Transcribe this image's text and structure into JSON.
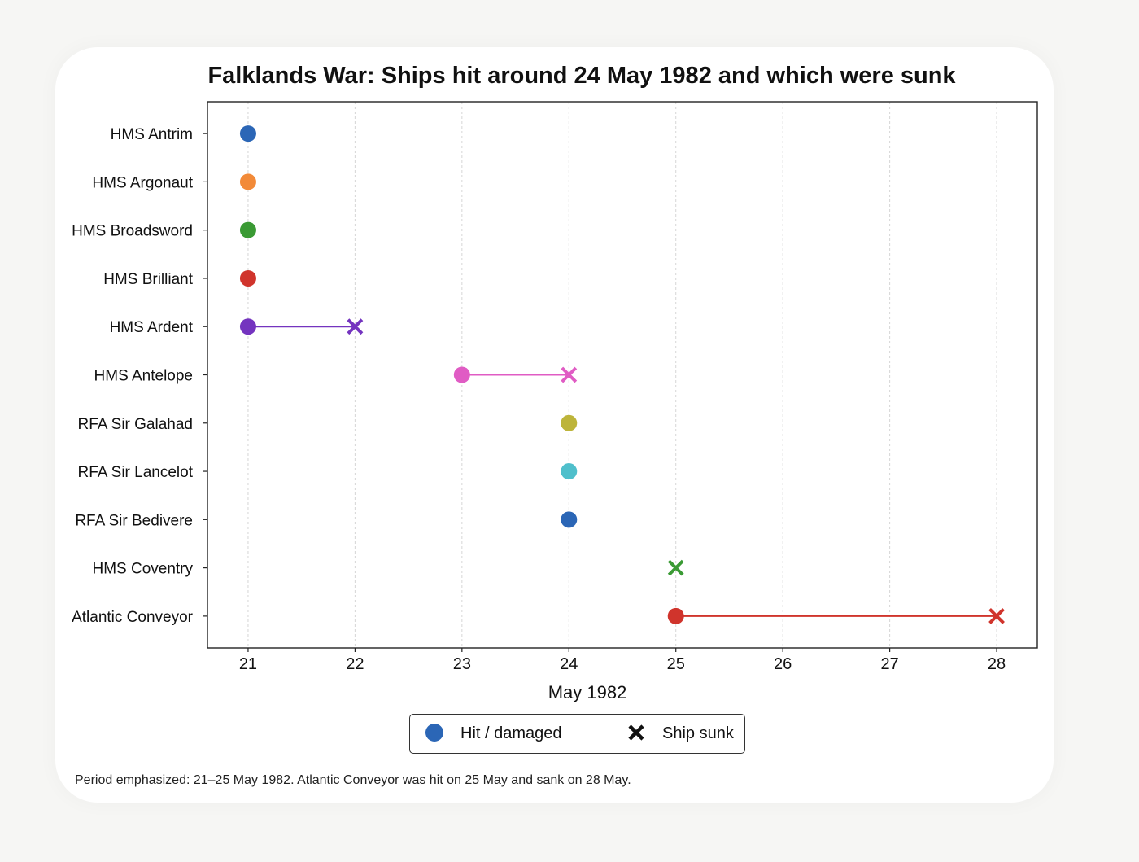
{
  "chart_data": {
    "type": "scatter",
    "title": "Falklands War: Ships hit around 24 May 1982 and which were sunk",
    "xlabel": "May 1982",
    "ylabel": "",
    "x_ticks": [
      21,
      22,
      23,
      24,
      25,
      26,
      27,
      28
    ],
    "xlim": [
      20.62,
      28.38
    ],
    "grid": {
      "x": true,
      "y": false
    },
    "rows": [
      {
        "label": "HMS Antrim",
        "hit": 21,
        "sunk": null,
        "color": "#2b66b6"
      },
      {
        "label": "HMS Argonaut",
        "hit": 21,
        "sunk": null,
        "color": "#f28a38"
      },
      {
        "label": "HMS Broadsword",
        "hit": 21,
        "sunk": null,
        "color": "#3a9a34"
      },
      {
        "label": "HMS Brilliant",
        "hit": 21,
        "sunk": null,
        "color": "#d0342c"
      },
      {
        "label": "HMS Ardent",
        "hit": 21,
        "sunk": 22,
        "color": "#7434bf"
      },
      {
        "label": "HMS Antelope",
        "hit": 23,
        "sunk": 24,
        "color": "#e05cc4"
      },
      {
        "label": "RFA Sir Galahad",
        "hit": 24,
        "sunk": null,
        "color": "#bdb43a"
      },
      {
        "label": "RFA Sir Lancelot",
        "hit": 24,
        "sunk": null,
        "color": "#4fbfcb"
      },
      {
        "label": "RFA Sir Bedivere",
        "hit": 24,
        "sunk": null,
        "color": "#2b66b6"
      },
      {
        "label": "HMS Coventry",
        "hit": null,
        "sunk": 25,
        "color": "#3a9a34"
      },
      {
        "label": "Atlantic Conveyor",
        "hit": 25,
        "sunk": 28,
        "color": "#d0342c"
      }
    ],
    "legend": {
      "position": "bottom-center",
      "entries": [
        {
          "label": "Hit / damaged",
          "marker": "circle",
          "color": "#2b66b6"
        },
        {
          "label": "Ship sunk",
          "marker": "x",
          "color": "#111111"
        }
      ]
    },
    "footnote": "Period emphasized: 21–25 May 1982. Atlantic Conveyor was hit on 25 May and sank on 28 May."
  }
}
